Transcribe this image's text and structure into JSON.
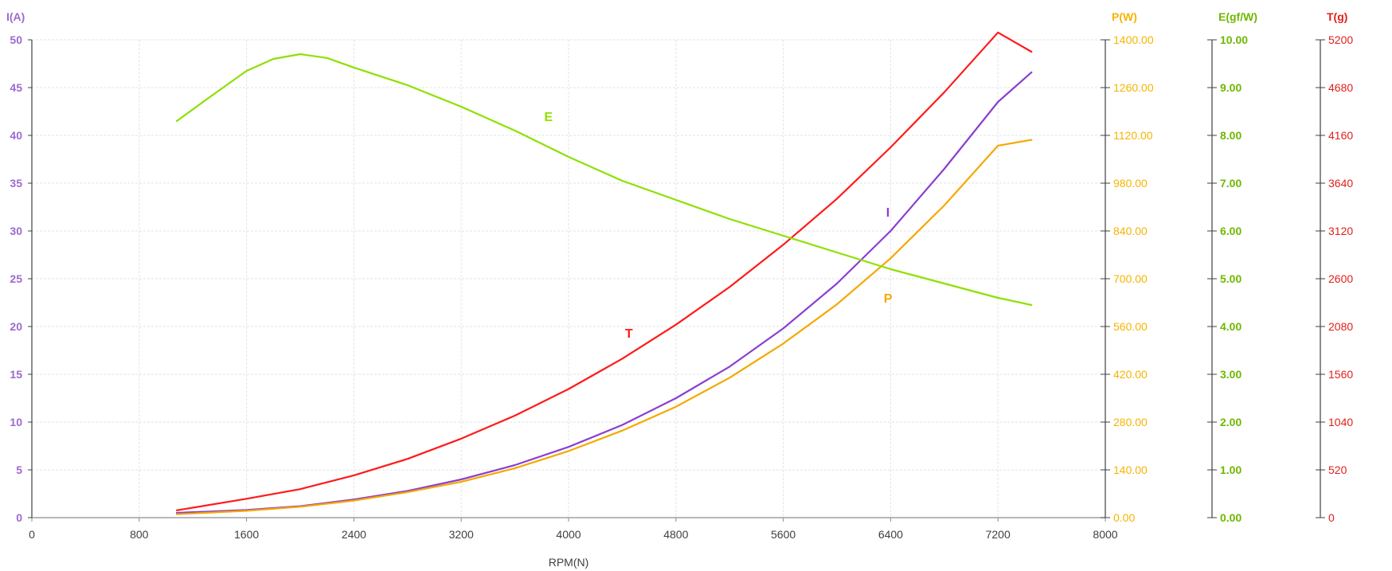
{
  "chart_data": {
    "type": "line",
    "xlabel": "RPM(N)",
    "xlim": [
      0,
      8000
    ],
    "xticks": [
      "0",
      "800",
      "1600",
      "2400",
      "3200",
      "4000",
      "4800",
      "5600",
      "6400",
      "7200",
      "8000"
    ],
    "grid": true,
    "axes": [
      {
        "id": "I",
        "title": "I(A)",
        "side": "left",
        "color": "#9b6ad0",
        "range": [
          0,
          50
        ],
        "ticks": [
          "0",
          "5",
          "10",
          "15",
          "20",
          "25",
          "30",
          "35",
          "40",
          "45",
          "50"
        ]
      },
      {
        "id": "P",
        "title": "P(W)",
        "side": "right",
        "color": "#f5b400",
        "range": [
          0,
          1400
        ],
        "ticks": [
          "0.00",
          "140.00",
          "280.00",
          "420.00",
          "560.00",
          "700.00",
          "840.00",
          "980.00",
          "1120.00",
          "1260.00",
          "1400.00"
        ]
      },
      {
        "id": "E",
        "title": "E(gf/W)",
        "side": "right",
        "color": "#6fb800",
        "range": [
          0,
          10
        ],
        "ticks": [
          "0.00",
          "1.00",
          "2.00",
          "3.00",
          "4.00",
          "5.00",
          "6.00",
          "7.00",
          "8.00",
          "9.00",
          "10.00"
        ]
      },
      {
        "id": "T",
        "title": "T(g)",
        "side": "right",
        "color": "#e0201c",
        "range": [
          0,
          5200
        ],
        "ticks": [
          "0",
          "520",
          "1040",
          "1560",
          "2080",
          "2600",
          "3120",
          "3640",
          "4160",
          "4680",
          "5200"
        ]
      }
    ],
    "series": [
      {
        "name": "T",
        "axis": "T",
        "color": "#ff1a1a",
        "x": [
          1080,
          1600,
          2000,
          2400,
          2800,
          3200,
          3600,
          4000,
          4400,
          4800,
          5200,
          5600,
          6000,
          6400,
          6800,
          7200,
          7450
        ],
        "y": [
          80,
          205,
          310,
          460,
          640,
          860,
          1110,
          1400,
          1730,
          2100,
          2510,
          2970,
          3470,
          4030,
          4630,
          5280,
          5070
        ]
      },
      {
        "name": "I",
        "axis": "I",
        "color": "#8a3fd0",
        "x": [
          1080,
          1600,
          2000,
          2400,
          2800,
          3200,
          3600,
          4000,
          4400,
          4800,
          5200,
          5600,
          6000,
          6400,
          6800,
          7200,
          7450
        ],
        "y": [
          0.5,
          0.8,
          1.2,
          1.9,
          2.8,
          4.0,
          5.5,
          7.4,
          9.7,
          12.5,
          15.8,
          19.8,
          24.5,
          30.0,
          36.5,
          43.5,
          46.6
        ]
      },
      {
        "name": "P",
        "axis": "P",
        "color": "#f5a800",
        "x": [
          1080,
          1600,
          2000,
          2400,
          2800,
          3200,
          3600,
          4000,
          4400,
          4800,
          5200,
          5600,
          6000,
          6400,
          6800,
          7200,
          7450
        ],
        "y": [
          10,
          20,
          32,
          50,
          75,
          105,
          145,
          195,
          255,
          325,
          410,
          510,
          625,
          760,
          915,
          1090,
          1107
        ]
      },
      {
        "name": "E",
        "axis": "E",
        "color": "#8ee000",
        "x": [
          1080,
          1300,
          1600,
          1800,
          2000,
          2200,
          2400,
          2800,
          3200,
          3600,
          4000,
          4400,
          4800,
          5200,
          5600,
          6000,
          6400,
          6800,
          7200,
          7450
        ],
        "y": [
          8.3,
          8.75,
          9.35,
          9.6,
          9.7,
          9.62,
          9.42,
          9.05,
          8.6,
          8.1,
          7.55,
          7.05,
          6.65,
          6.25,
          5.9,
          5.55,
          5.2,
          4.9,
          4.6,
          4.45
        ]
      }
    ],
    "annotations": [
      {
        "text": "E",
        "series": "E",
        "x": 3850,
        "axis": "E",
        "y": 8.3
      },
      {
        "text": "I",
        "series": "I",
        "x": 6380,
        "axis": "I",
        "y": 31.5
      },
      {
        "text": "T",
        "series": "T",
        "x": 4450,
        "axis": "T",
        "y": 1960
      },
      {
        "text": "P",
        "series": "P",
        "x": 6380,
        "axis": "P",
        "y": 630
      }
    ]
  }
}
